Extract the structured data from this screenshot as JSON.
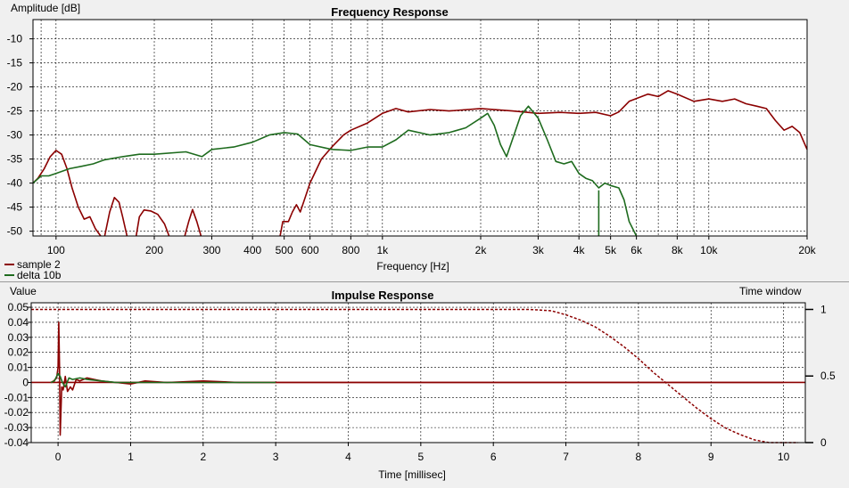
{
  "chart_data": [
    {
      "type": "line",
      "title": "Frequency Response",
      "xlabel": "Frequency [Hz]",
      "ylabel": "Amplitude [dB]",
      "xscale": "log",
      "xlim": [
        85,
        20000
      ],
      "ylim": [
        -51,
        -6
      ],
      "grid": true,
      "legend_position": "bottom-left",
      "xtick_values": [
        100,
        200,
        300,
        400,
        500,
        600,
        800,
        1000,
        2000,
        3000,
        4000,
        5000,
        6000,
        8000,
        10000,
        20000
      ],
      "xtick_labels": [
        "100",
        "200",
        "300",
        "400",
        "500",
        "600",
        "800",
        "1k",
        "2k",
        "3k",
        "4k",
        "5k",
        "6k",
        "8k",
        "10k",
        "20k"
      ],
      "ytick_values": [
        -10,
        -15,
        -20,
        -25,
        -30,
        -35,
        -40,
        -45,
        -50
      ],
      "ytick_labels": [
        "-10",
        "-15",
        "-20",
        "-25",
        "-30",
        "-35",
        "-40",
        "-45",
        "-50"
      ],
      "series": [
        {
          "name": "sample 2",
          "color": "#8b0000",
          "segments": [
            [
              [
                85,
                -40
              ],
              [
                88,
                -39
              ],
              [
                92,
                -37
              ],
              [
                96,
                -34.5
              ],
              [
                100,
                -33.2
              ],
              [
                104,
                -34
              ],
              [
                108,
                -37
              ],
              [
                112,
                -41
              ],
              [
                117,
                -45
              ],
              [
                122,
                -47.5
              ],
              [
                127,
                -47
              ],
              [
                132,
                -49.5
              ],
              [
                137,
                -51
              ]
            ],
            [
              [
                141,
                -51
              ],
              [
                146,
                -46
              ],
              [
                151,
                -43
              ],
              [
                156,
                -44
              ],
              [
                160,
                -47
              ],
              [
                165,
                -51
              ]
            ],
            [
              [
                176,
                -51
              ],
              [
                180,
                -47
              ],
              [
                186,
                -45.6
              ],
              [
                195,
                -45.8
              ],
              [
                205,
                -46.5
              ],
              [
                215,
                -48.5
              ],
              [
                222,
                -51
              ]
            ],
            [
              [
                248,
                -51
              ],
              [
                255,
                -48
              ],
              [
                262,
                -45.5
              ],
              [
                270,
                -48
              ],
              [
                278,
                -51
              ]
            ],
            [
              [
                486,
                -51
              ],
              [
                495,
                -48
              ],
              [
                515,
                -48
              ],
              [
                530,
                -46
              ],
              [
                545,
                -44.5
              ],
              [
                560,
                -46
              ],
              [
                580,
                -43
              ],
              [
                600,
                -40
              ],
              [
                650,
                -35
              ],
              [
                700,
                -32.5
              ],
              [
                760,
                -30
              ],
              [
                800,
                -29
              ],
              [
                900,
                -27.5
              ],
              [
                1000,
                -25.5
              ],
              [
                1100,
                -24.5
              ],
              [
                1200,
                -25.2
              ],
              [
                1400,
                -24.7
              ],
              [
                1600,
                -25
              ],
              [
                2000,
                -24.5
              ],
              [
                2500,
                -25
              ],
              [
                3000,
                -25.5
              ],
              [
                3500,
                -25.3
              ],
              [
                4000,
                -25.5
              ],
              [
                4500,
                -25.3
              ],
              [
                5000,
                -26
              ],
              [
                5300,
                -25.2
              ],
              [
                5700,
                -23
              ],
              [
                6500,
                -21.5
              ],
              [
                7000,
                -22
              ],
              [
                7500,
                -20.8
              ],
              [
                8000,
                -21.5
              ],
              [
                9000,
                -23
              ],
              [
                10000,
                -22.5
              ],
              [
                11000,
                -23
              ],
              [
                12000,
                -22.5
              ],
              [
                13000,
                -23.5
              ],
              [
                14000,
                -24
              ],
              [
                15000,
                -24.5
              ],
              [
                16000,
                -27
              ],
              [
                17000,
                -29
              ],
              [
                18000,
                -28.2
              ],
              [
                19000,
                -29.5
              ],
              [
                20000,
                -33
              ]
            ]
          ]
        },
        {
          "name": "delta 10b",
          "color": "#1e6b1e",
          "segments": [
            [
              [
                85,
                -40
              ],
              [
                90,
                -38.5
              ],
              [
                95,
                -38.5
              ],
              [
                100,
                -38
              ],
              [
                110,
                -37
              ],
              [
                120,
                -36.5
              ],
              [
                130,
                -36
              ],
              [
                140,
                -35.2
              ],
              [
                160,
                -34.5
              ],
              [
                180,
                -34
              ],
              [
                200,
                -34
              ],
              [
                250,
                -33.5
              ],
              [
                280,
                -34.5
              ],
              [
                300,
                -33
              ],
              [
                350,
                -32.5
              ],
              [
                400,
                -31.5
              ],
              [
                450,
                -30
              ],
              [
                500,
                -29.5
              ],
              [
                550,
                -29.8
              ],
              [
                600,
                -32
              ],
              [
                700,
                -33
              ],
              [
                800,
                -33.2
              ],
              [
                900,
                -32.5
              ],
              [
                1000,
                -32.5
              ],
              [
                1100,
                -31
              ],
              [
                1200,
                -29
              ],
              [
                1400,
                -30
              ],
              [
                1600,
                -29.5
              ],
              [
                1800,
                -28.5
              ],
              [
                2000,
                -26.5
              ],
              [
                2100,
                -25.5
              ],
              [
                2200,
                -28
              ],
              [
                2300,
                -32
              ],
              [
                2400,
                -34.5
              ],
              [
                2500,
                -31
              ],
              [
                2650,
                -26
              ],
              [
                2800,
                -24
              ],
              [
                3000,
                -26.5
              ],
              [
                3200,
                -31
              ],
              [
                3400,
                -35.5
              ],
              [
                3600,
                -36
              ],
              [
                3800,
                -35.5
              ],
              [
                4000,
                -38
              ],
              [
                4200,
                -39
              ],
              [
                4400,
                -39.5
              ],
              [
                4600,
                -41
              ],
              [
                4800,
                -40
              ],
              [
                5000,
                -40.5
              ],
              [
                5300,
                -41
              ],
              [
                5500,
                -43.5
              ],
              [
                5700,
                -48
              ],
              [
                6000,
                -51
              ]
            ],
            [
              [
                4600,
                -51
              ],
              [
                4600,
                -41.5
              ]
            ]
          ]
        }
      ]
    },
    {
      "type": "line",
      "title": "Impulse Response",
      "xlabel": "Time [millisec]",
      "ylabel": "Value",
      "y2label": "Time window",
      "xlim": [
        -0.37,
        10.3
      ],
      "ylim": [
        -0.04,
        0.053
      ],
      "y2lim": [
        0,
        1.05
      ],
      "grid": true,
      "xtick_values": [
        0,
        1,
        2,
        3,
        4,
        5,
        6,
        7,
        8,
        9,
        10
      ],
      "xtick_labels": [
        "0",
        "1",
        "2",
        "3",
        "4",
        "5",
        "6",
        "7",
        "8",
        "9",
        "10"
      ],
      "ytick_values": [
        0.05,
        0.04,
        0.03,
        0.02,
        0.01,
        0,
        -0.01,
        -0.02,
        -0.03,
        -0.04
      ],
      "ytick_labels": [
        "0.05",
        "0.04",
        "0.03",
        "0.02",
        "0.01",
        "0",
        "-0.01",
        "-0.02",
        "-0.03",
        "-0.04"
      ],
      "y2tick_values": [
        1,
        0.5,
        0
      ],
      "y2tick_labels": [
        "1",
        "0.5",
        "0"
      ],
      "series": [
        {
          "name": "sample 2",
          "color": "#8b0000",
          "x": [
            -0.1,
            -0.06,
            -0.02,
            0,
            0.01,
            0.02,
            0.03,
            0.05,
            0.07,
            0.1,
            0.13,
            0.17,
            0.2,
            0.25,
            0.3,
            0.4,
            0.5,
            0.6,
            0.8,
            1.0,
            1.2,
            1.5,
            2.0,
            2.5,
            3.0,
            5.0,
            8.9,
            10.0
          ],
          "y": [
            0.0,
            0.001,
            0.003,
            0.01,
            0.04,
            0.012,
            -0.035,
            -0.003,
            -0.005,
            0.004,
            -0.006,
            -0.003,
            -0.005,
            0.002,
            0.001,
            0.003,
            0.002,
            0.001,
            0.0,
            -0.001,
            0.001,
            0.0,
            0.001,
            0.0,
            0.0,
            0.0,
            0.0,
            0.0
          ]
        },
        {
          "name": "delta 10b",
          "color": "#1e6b1e",
          "x": [
            -0.1,
            -0.05,
            0,
            0.03,
            0.06,
            0.1,
            0.15,
            0.2,
            0.3,
            0.4,
            0.6,
            0.8,
            1.0,
            1.5,
            2.0,
            2.5,
            3.0
          ],
          "y": [
            0.0,
            0.001,
            0.006,
            0.004,
            0.0,
            -0.003,
            0.003,
            0.002,
            0.003,
            0.002,
            0.001,
            0.0,
            0.0,
            0.0,
            0.0,
            0.0,
            0.0
          ]
        },
        {
          "name": "Time window",
          "color": "#8b0000",
          "dashed": true,
          "axis": "y2",
          "x": [
            -0.37,
            6.5,
            6.8,
            7.0,
            7.2,
            7.4,
            7.6,
            7.8,
            8.0,
            8.2,
            8.4,
            8.6,
            8.8,
            9.0,
            9.2,
            9.4,
            9.6,
            9.8,
            10.2
          ],
          "y": [
            1,
            1,
            0.99,
            0.96,
            0.92,
            0.87,
            0.8,
            0.72,
            0.63,
            0.53,
            0.44,
            0.35,
            0.26,
            0.18,
            0.11,
            0.06,
            0.02,
            0.0,
            0.0
          ]
        }
      ]
    }
  ]
}
